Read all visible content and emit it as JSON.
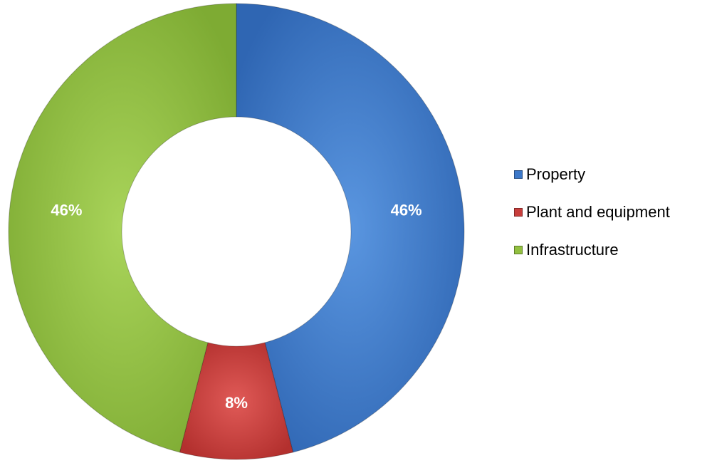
{
  "chart_data": {
    "type": "pie",
    "variant": "donut",
    "title": "",
    "categories": [
      "Property",
      "Plant and equipment",
      "Infrastructure"
    ],
    "values": [
      46,
      8,
      46
    ],
    "data_labels": [
      "46%",
      "8%",
      "46%"
    ],
    "colors": [
      "#3c78c9",
      "#c83e3c",
      "#92c040"
    ],
    "legend_position": "right"
  }
}
